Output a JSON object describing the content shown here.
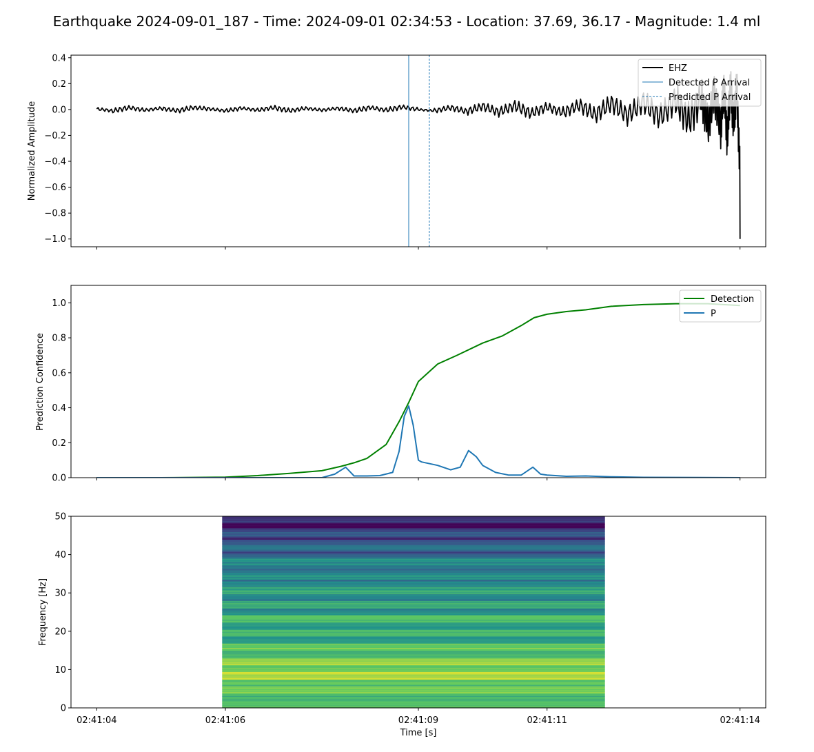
{
  "figure": {
    "title": "Earthquake 2024-09-01_187 - Time: 2024-09-01 02:34:53 - Location: 37.69, 36.17 - Magnitude: 1.4 ml",
    "x_ticks": [
      "02:41:04",
      "02:41:06",
      "02:41:09",
      "02:41:11",
      "02:41:14"
    ],
    "x_tick_seconds": [
      0,
      2,
      5,
      7,
      10
    ],
    "xlabel": "Time [s]",
    "xlim_seconds": [
      -0.4,
      10.4
    ]
  },
  "chart_data": [
    {
      "type": "line",
      "panel": "waveform",
      "ylabel": "Normalized Amplitude",
      "ylim": [
        -1.06,
        0.42
      ],
      "yticks": [
        "0.4",
        "0.2",
        "0.0",
        "−0.2",
        "−0.4",
        "−0.6",
        "−0.8",
        "−1.0"
      ],
      "ytick_values": [
        0.4,
        0.2,
        0.0,
        -0.2,
        -0.4,
        -0.6,
        -0.8,
        -1.0
      ],
      "series": [
        {
          "name": "EHZ",
          "color": "#000000",
          "x": [
            0.0,
            0.25,
            0.5,
            0.75,
            1.0,
            1.25,
            1.5,
            1.75,
            2.0,
            2.25,
            2.5,
            2.75,
            3.0,
            3.25,
            3.5,
            3.75,
            4.0,
            4.25,
            4.5,
            4.75,
            5.0,
            5.25,
            5.5,
            5.75,
            6.0,
            6.25,
            6.5,
            6.75,
            7.0,
            7.25,
            7.5,
            7.75,
            8.0,
            8.25,
            8.5,
            8.75,
            9.0,
            9.2,
            9.4,
            9.5,
            9.6,
            9.7,
            9.75,
            9.8,
            9.85,
            9.9,
            9.95,
            10.0
          ],
          "y": [
            0.01,
            -0.02,
            0.03,
            -0.01,
            0.02,
            -0.02,
            0.03,
            0.01,
            -0.02,
            0.02,
            -0.01,
            0.03,
            -0.02,
            0.02,
            -0.01,
            0.02,
            -0.02,
            0.03,
            -0.01,
            0.04,
            0.0,
            -0.02,
            0.03,
            -0.03,
            0.05,
            -0.04,
            0.06,
            -0.06,
            0.04,
            -0.05,
            0.07,
            -0.08,
            0.1,
            -0.09,
            0.12,
            -0.12,
            0.15,
            -0.18,
            0.2,
            -0.25,
            0.25,
            -0.29,
            0.35,
            -0.45,
            0.36,
            -0.2,
            0.34,
            -1.0
          ]
        }
      ],
      "annotations": [
        {
          "name": "Detected P Arrival",
          "x": 4.85,
          "style": "solid",
          "color": "#1f77b4"
        },
        {
          "name": "Predicted P Arrival",
          "x": 5.17,
          "style": "dashed",
          "color": "#1f77b4"
        }
      ],
      "legend": "top-right",
      "legend_entries": [
        "EHZ",
        "Detected P Arrival",
        "Predicted P Arrival"
      ]
    },
    {
      "type": "line",
      "panel": "prediction",
      "ylabel": "Prediction Confidence",
      "ylim": [
        0.0,
        1.1
      ],
      "yticks": [
        "0.0",
        "0.2",
        "0.4",
        "0.6",
        "0.8",
        "1.0"
      ],
      "ytick_values": [
        0.0,
        0.2,
        0.4,
        0.6,
        0.8,
        1.0
      ],
      "series": [
        {
          "name": "Detection",
          "color": "#008000",
          "x": [
            0,
            1,
            2,
            2.5,
            3,
            3.5,
            3.8,
            4.0,
            4.2,
            4.5,
            4.7,
            4.85,
            5.0,
            5.3,
            5.6,
            6.0,
            6.3,
            6.6,
            6.8,
            7.0,
            7.3,
            7.6,
            8.0,
            8.5,
            9.0,
            9.5,
            10.0
          ],
          "y": [
            0,
            0,
            0.003,
            0.012,
            0.025,
            0.04,
            0.065,
            0.085,
            0.11,
            0.19,
            0.32,
            0.43,
            0.55,
            0.65,
            0.7,
            0.77,
            0.81,
            0.87,
            0.915,
            0.935,
            0.95,
            0.96,
            0.98,
            0.99,
            0.995,
            0.995,
            0.985
          ]
        },
        {
          "name": "P",
          "color": "#1f77b4",
          "x": [
            0,
            3.5,
            3.7,
            3.87,
            4.0,
            4.2,
            4.4,
            4.6,
            4.7,
            4.78,
            4.85,
            4.92,
            5.0,
            5.05,
            5.3,
            5.5,
            5.65,
            5.78,
            5.9,
            6.0,
            6.2,
            6.4,
            6.6,
            6.78,
            6.9,
            7.0,
            7.3,
            7.6,
            8.0,
            8.5,
            10.0
          ],
          "y": [
            0,
            0,
            0.02,
            0.06,
            0.01,
            0.01,
            0.012,
            0.03,
            0.15,
            0.35,
            0.41,
            0.3,
            0.1,
            0.09,
            0.07,
            0.045,
            0.06,
            0.155,
            0.12,
            0.07,
            0.03,
            0.015,
            0.015,
            0.06,
            0.02,
            0.015,
            0.008,
            0.01,
            0.005,
            0.002,
            0.0
          ]
        }
      ],
      "legend": "top-right",
      "legend_entries": [
        "Detection",
        "P"
      ]
    },
    {
      "type": "heatmap",
      "panel": "spectrogram",
      "ylabel": "Frequency [Hz]",
      "ylim": [
        0,
        50
      ],
      "yticks": [
        "0",
        "10",
        "20",
        "30",
        "40",
        "50"
      ],
      "ytick_values": [
        0,
        10,
        20,
        30,
        40,
        50
      ],
      "x_range_seconds": [
        1.95,
        7.9
      ],
      "colormap": "viridis",
      "frequency_bands": [
        {
          "from": 0,
          "to": 2,
          "level": 0.72
        },
        {
          "from": 2,
          "to": 6,
          "level": 0.78
        },
        {
          "from": 6,
          "to": 7,
          "level": 0.92
        },
        {
          "from": 7,
          "to": 13,
          "level": 0.88
        },
        {
          "from": 13,
          "to": 17,
          "level": 0.8
        },
        {
          "from": 17,
          "to": 25,
          "level": 0.7
        },
        {
          "from": 25,
          "to": 33,
          "level": 0.6
        },
        {
          "from": 33,
          "to": 40,
          "level": 0.5
        },
        {
          "from": 40,
          "to": 44,
          "level": 0.38
        },
        {
          "from": 44,
          "to": 47,
          "level": 0.27
        },
        {
          "from": 47,
          "to": 50,
          "level": 0.16
        }
      ]
    }
  ]
}
